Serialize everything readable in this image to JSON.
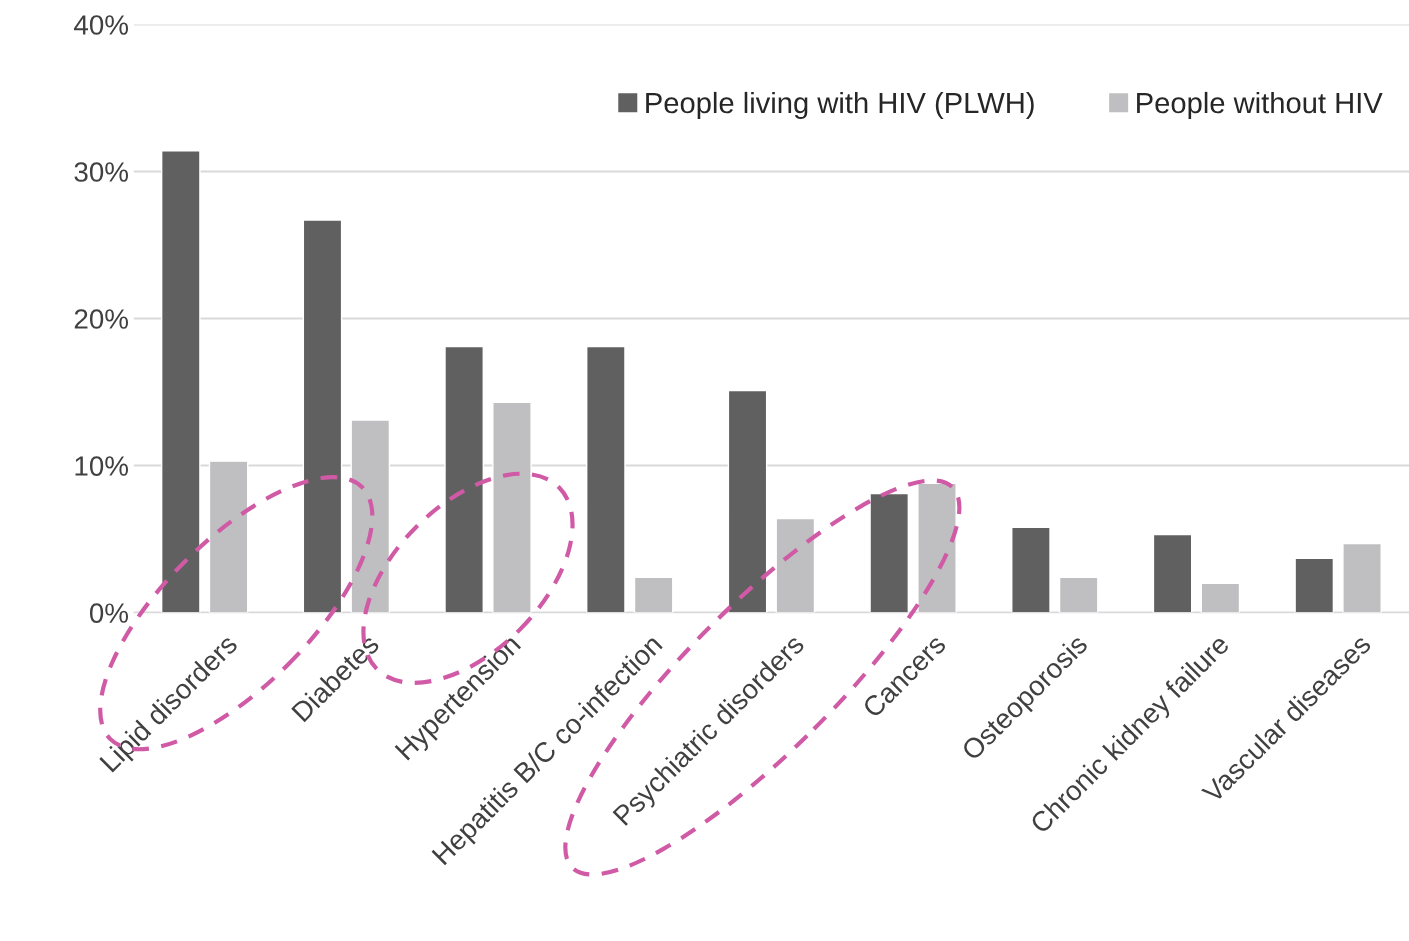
{
  "chart_data": {
    "type": "bar",
    "categories": [
      "Lipid disorders",
      "Diabetes",
      "Hypertension",
      "Hepatitis B/C co-infection",
      "Psychiatric disorders",
      "Cancers",
      "Osteoporosis",
      "Chronic kidney failure",
      "Vascular diseases"
    ],
    "series": [
      {
        "name": "People living with HIV (PLWH)",
        "color": "#606060",
        "values": [
          31.4,
          26.7,
          18.1,
          18.1,
          15.1,
          8.1,
          5.8,
          5.3,
          3.7
        ]
      },
      {
        "name": "People without HIV",
        "color": "#bfbfc1",
        "values": [
          10.3,
          13.1,
          14.3,
          2.4,
          6.4,
          8.8,
          2.4,
          2.0,
          4.7
        ]
      }
    ],
    "ylim": [
      0,
      40
    ],
    "yticks": [
      {
        "value": 0,
        "label": "0%"
      },
      {
        "value": 10,
        "label": "10%"
      },
      {
        "value": 20,
        "label": "20%"
      },
      {
        "value": 30,
        "label": "30%"
      },
      {
        "value": 40,
        "label": "40%"
      }
    ],
    "grid": "y",
    "legend": "top right"
  }
}
